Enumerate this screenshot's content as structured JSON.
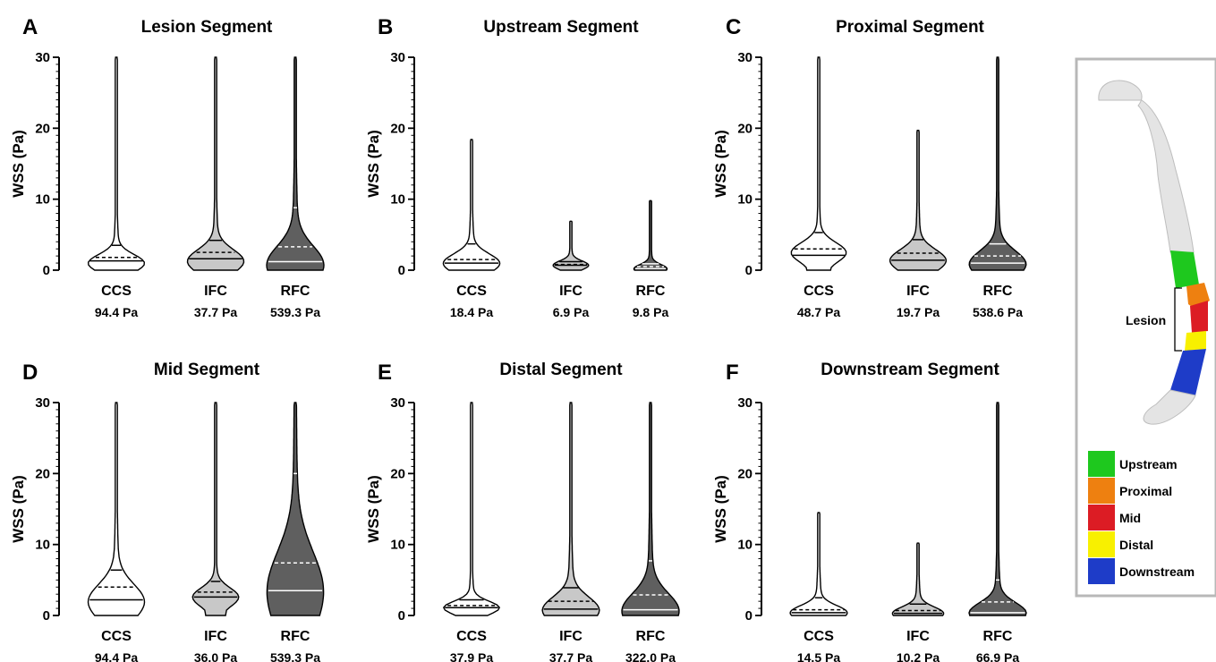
{
  "chart_data": [
    {
      "letter": "A",
      "title": "Lesion Segment",
      "type": "violin",
      "ylabel": "WSS (Pa)",
      "ylim": [
        0,
        30
      ],
      "yticks": [
        "0",
        "10",
        "20",
        "30"
      ],
      "categories": [
        "CCS",
        "IFC",
        "RFC"
      ],
      "max_labels": [
        "94.4 Pa",
        "37.7 Pa",
        "539.3 Pa"
      ],
      "violins": [
        {
          "fill": "#ffffff",
          "median": 1.3,
          "mean": 1.8,
          "p75": 3.5,
          "p95": 8,
          "peak": 1.0,
          "width": 0.95,
          "top": 30,
          "spread": 1.2
        },
        {
          "fill": "#c8c8c8",
          "median": 1.6,
          "mean": 2.5,
          "p75": 4.2,
          "p95": 11,
          "peak": 1.3,
          "width": 0.95,
          "top": 30,
          "spread": 1.6
        },
        {
          "fill": "#5f5f5f",
          "median": 1.2,
          "mean": 3.3,
          "p75": 8.8,
          "p95": 22,
          "peak": 0.8,
          "width": 0.95,
          "top": 30,
          "spread": 2.6
        }
      ]
    },
    {
      "letter": "B",
      "title": "Upstream Segment",
      "type": "violin",
      "ylabel": "WSS (Pa)",
      "ylim": [
        0,
        30
      ],
      "yticks": [
        "0",
        "10",
        "20",
        "30"
      ],
      "categories": [
        "CCS",
        "IFC",
        "RFC"
      ],
      "max_labels": [
        "18.4 Pa",
        "6.9 Pa",
        "9.8 Pa"
      ],
      "violins": [
        {
          "fill": "#ffffff",
          "median": 1.0,
          "mean": 1.5,
          "p75": 3.7,
          "p95": 8,
          "peak": 1.0,
          "width": 0.95,
          "top": 18.4,
          "spread": 1.3
        },
        {
          "fill": "#c8c8c8",
          "median": 0.7,
          "mean": 0.8,
          "p75": 1.2,
          "p95": 3,
          "peak": 0.7,
          "width": 0.6,
          "top": 6.9,
          "spread": 0.6
        },
        {
          "fill": "#5f5f5f",
          "median": 0.2,
          "mean": 0.5,
          "p75": 0.9,
          "p95": 3,
          "peak": 0.2,
          "width": 0.55,
          "top": 9.8,
          "spread": 0.6
        }
      ]
    },
    {
      "letter": "C",
      "title": "Proximal Segment",
      "type": "violin",
      "ylabel": "WSS (Pa)",
      "ylim": [
        0,
        30
      ],
      "yticks": [
        "0",
        "10",
        "20",
        "30"
      ],
      "categories": [
        "CCS",
        "IFC",
        "RFC"
      ],
      "max_labels": [
        "48.7 Pa",
        "19.7 Pa",
        "538.6 Pa"
      ],
      "violins": [
        {
          "fill": "#ffffff",
          "median": 2.1,
          "mean": 3.0,
          "p75": 5.3,
          "p95": 12,
          "peak": 2.5,
          "width": 0.95,
          "top": 30,
          "spread": 1.4
        },
        {
          "fill": "#c8c8c8",
          "median": 1.4,
          "mean": 2.4,
          "p75": 4.3,
          "p95": 10,
          "peak": 1.4,
          "width": 0.95,
          "top": 19.7,
          "spread": 1.5
        },
        {
          "fill": "#5f5f5f",
          "median": 1.0,
          "mean": 2.0,
          "p75": 3.7,
          "p95": 12,
          "peak": 0.9,
          "width": 0.95,
          "top": 30,
          "spread": 1.8
        }
      ]
    },
    {
      "letter": "D",
      "title": "Mid Segment",
      "type": "violin",
      "ylabel": "WSS (Pa)",
      "ylim": [
        0,
        30
      ],
      "yticks": [
        "0",
        "10",
        "20",
        "30"
      ],
      "categories": [
        "CCS",
        "IFC",
        "RFC"
      ],
      "max_labels": [
        "94.4 Pa",
        "36.0 Pa",
        "539.3 Pa"
      ],
      "violins": [
        {
          "fill": "#ffffff",
          "median": 2.2,
          "mean": 4.0,
          "p75": 6.4,
          "p95": 15,
          "peak": 2.0,
          "width": 0.95,
          "top": 30,
          "spread": 2.4
        },
        {
          "fill": "#c8c8c8",
          "median": 2.6,
          "mean": 3.3,
          "p75": 4.8,
          "p95": 10,
          "peak": 2.6,
          "width": 0.8,
          "top": 30,
          "spread": 1.3
        },
        {
          "fill": "#5f5f5f",
          "median": 3.5,
          "mean": 7.4,
          "p75": 20,
          "p95": 28,
          "peak": 3.5,
          "width": 0.95,
          "top": 30,
          "spread": 5.5
        }
      ]
    },
    {
      "letter": "E",
      "title": "Distal Segment",
      "type": "violin",
      "ylabel": "WSS (Pa)",
      "ylim": [
        0,
        30
      ],
      "yticks": [
        "0",
        "10",
        "20",
        "30"
      ],
      "categories": [
        "CCS",
        "IFC",
        "RFC"
      ],
      "max_labels": [
        "37.9 Pa",
        "37.7 Pa",
        "322.0 Pa"
      ],
      "violins": [
        {
          "fill": "#ffffff",
          "median": 1.1,
          "mean": 1.4,
          "p75": 2.2,
          "p95": 6,
          "peak": 1.1,
          "width": 0.95,
          "top": 30,
          "spread": 0.9
        },
        {
          "fill": "#c8c8c8",
          "median": 0.9,
          "mean": 2.0,
          "p75": 3.9,
          "p95": 11,
          "peak": 0.8,
          "width": 0.95,
          "top": 30,
          "spread": 1.8
        },
        {
          "fill": "#5f5f5f",
          "median": 0.8,
          "mean": 2.9,
          "p75": 7.7,
          "p95": 16,
          "peak": 0.7,
          "width": 0.95,
          "top": 30,
          "spread": 2.4
        }
      ]
    },
    {
      "letter": "F",
      "title": "Downstream Segment",
      "type": "violin",
      "ylabel": "WSS (Pa)",
      "ylim": [
        0,
        30
      ],
      "yticks": [
        "0",
        "10",
        "20",
        "30"
      ],
      "categories": [
        "CCS",
        "IFC",
        "RFC"
      ],
      "max_labels": [
        "14.5 Pa",
        "10.2 Pa",
        "66.9 Pa"
      ],
      "violins": [
        {
          "fill": "#ffffff",
          "median": 0.4,
          "mean": 0.8,
          "p75": 2.5,
          "p95": 8,
          "peak": 0.4,
          "width": 0.95,
          "top": 14.5,
          "spread": 1.0
        },
        {
          "fill": "#c8c8c8",
          "median": 0.3,
          "mean": 0.7,
          "p75": 1.6,
          "p95": 6,
          "peak": 0.3,
          "width": 0.85,
          "top": 10.2,
          "spread": 0.9
        },
        {
          "fill": "#5f5f5f",
          "median": 0.4,
          "mean": 1.9,
          "p75": 5.0,
          "p95": 11,
          "peak": 0.4,
          "width": 0.95,
          "top": 30,
          "spread": 1.4
        }
      ]
    }
  ],
  "inset": {
    "lesion_label": "Lesion",
    "legend": [
      {
        "label": "Upstream",
        "color": "#1ec81e"
      },
      {
        "label": "Proximal",
        "color": "#ee8010"
      },
      {
        "label": "Mid",
        "color": "#dc1c24"
      },
      {
        "label": "Distal",
        "color": "#f8f000"
      },
      {
        "label": "Downstream",
        "color": "#1e3cc8"
      }
    ]
  }
}
